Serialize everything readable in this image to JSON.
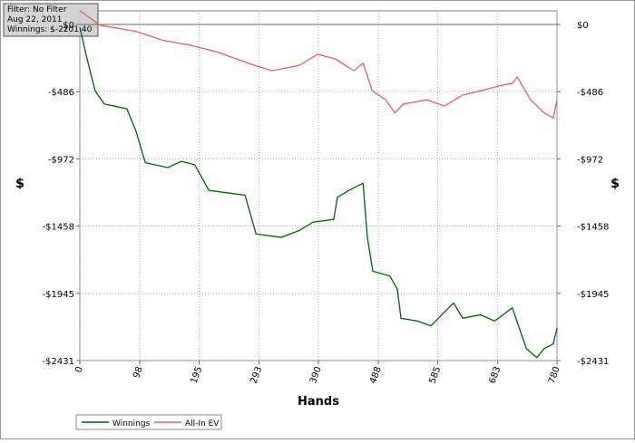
{
  "info": {
    "filter": "Filter: No Filter",
    "date": "Aug 22, 2011",
    "winnings": "Winnings: $-2201.40"
  },
  "chart_data": {
    "type": "line",
    "xlabel": "Hands",
    "ylabel": "$",
    "xlim": [
      0,
      780
    ],
    "xticks": [
      0,
      98,
      195,
      293,
      390,
      488,
      585,
      683,
      780
    ],
    "ylim": [
      -2431,
      0
    ],
    "yticks": [
      {
        "value": 0,
        "label": "$0"
      },
      {
        "value": -486,
        "label": "-$486"
      },
      {
        "value": -972,
        "label": "-$972"
      },
      {
        "value": -1458,
        "label": "-$1458"
      },
      {
        "value": -1945,
        "label": "-$1945"
      },
      {
        "value": -2431,
        "label": "-$2431"
      }
    ],
    "grid": true,
    "series": [
      {
        "name": "Winnings",
        "color": "#006400",
        "x": [
          0,
          10,
          25,
          40,
          77,
          92,
          107,
          144,
          166,
          188,
          211,
          270,
          288,
          329,
          359,
          381,
          415,
          421,
          440,
          455,
          463,
          470,
          479,
          507,
          519,
          525,
          552,
          574,
          596,
          611,
          626,
          655,
          678,
          707,
          730,
          747,
          759,
          774,
          780
        ],
        "values": [
          -20,
          -215,
          -480,
          -575,
          -610,
          -775,
          -1000,
          -1035,
          -990,
          -1015,
          -1200,
          -1235,
          -1515,
          -1540,
          -1490,
          -1430,
          -1410,
          -1250,
          -1200,
          -1165,
          -1150,
          -1540,
          -1785,
          -1820,
          -1915,
          -2125,
          -2145,
          -2180,
          -2080,
          -2015,
          -2125,
          -2100,
          -2145,
          -2050,
          -2345,
          -2410,
          -2345,
          -2310,
          -2195
        ]
      },
      {
        "name": "All-In EV",
        "color": "#e06060",
        "x": [
          0,
          33,
          92,
          136,
          181,
          225,
          285,
          314,
          359,
          389,
          418,
          448,
          463,
          478,
          500,
          515,
          529,
          567,
          596,
          626,
          655,
          685,
          707,
          715,
          737,
          759,
          774,
          780
        ],
        "values": [
          100,
          -5,
          -50,
          -115,
          -150,
          -200,
          -295,
          -335,
          -295,
          -215,
          -250,
          -335,
          -280,
          -480,
          -545,
          -640,
          -575,
          -545,
          -590,
          -510,
          -480,
          -445,
          -425,
          -380,
          -545,
          -640,
          -675,
          -545
        ]
      }
    ]
  }
}
